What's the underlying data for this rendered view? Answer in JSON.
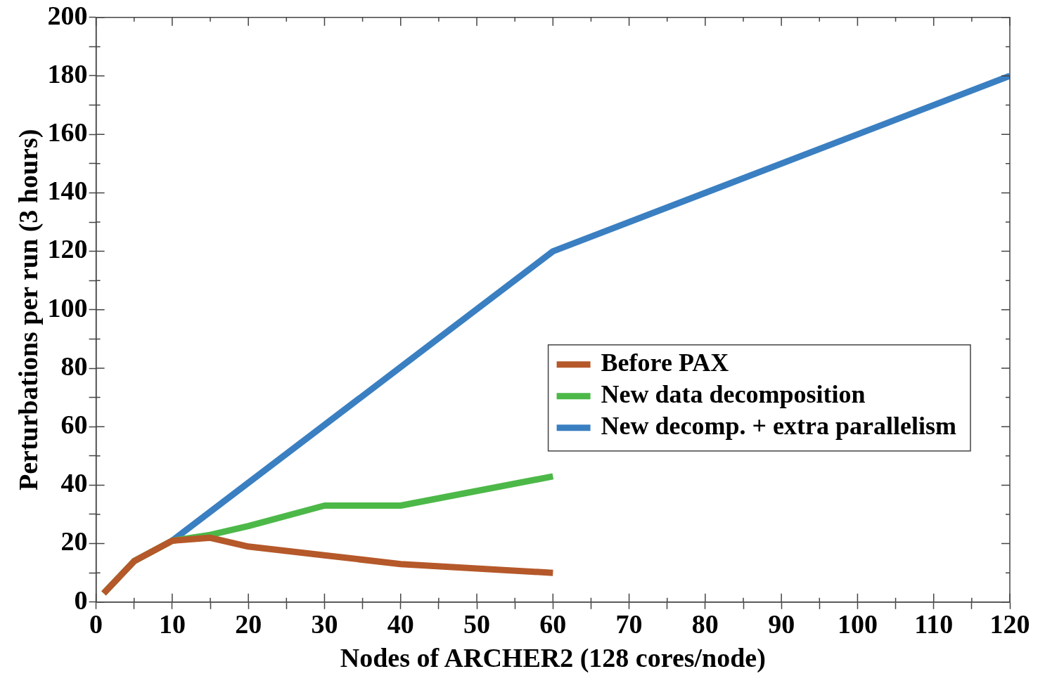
{
  "chart_data": {
    "type": "line",
    "xlabel": "Nodes of ARCHER2 (128 cores/node)",
    "ylabel": "Perturbations per run (3 hours)",
    "xlim": [
      0,
      120
    ],
    "xticks": [
      0,
      {
        "value": 5,
        "label": null
      },
      10,
      {
        "value": 15,
        "label": null
      },
      20,
      {
        "value": 25,
        "label": null
      },
      30,
      {
        "value": 35,
        "label": null
      },
      40,
      {
        "value": 45,
        "label": null
      },
      50,
      {
        "value": 55,
        "label": null
      },
      60,
      {
        "value": 65,
        "label": null
      },
      70,
      {
        "value": 75,
        "label": null
      },
      80,
      {
        "value": 85,
        "label": null
      },
      90,
      {
        "value": 95,
        "label": null
      },
      100,
      {
        "value": 105,
        "label": null
      },
      110,
      {
        "value": 115,
        "label": null
      },
      120
    ],
    "ylim": [
      0,
      200
    ],
    "yticks": [
      0,
      {
        "value": 10,
        "label": null
      },
      20,
      {
        "value": 30,
        "label": null
      },
      40,
      {
        "value": 50,
        "label": null
      },
      60,
      {
        "value": 70,
        "label": null
      },
      80,
      {
        "value": 90,
        "label": null
      },
      100,
      {
        "value": 110,
        "label": null
      },
      120,
      {
        "value": 130,
        "label": null
      },
      140,
      {
        "value": 150,
        "label": null
      },
      160,
      {
        "value": 170,
        "label": null
      },
      180,
      {
        "value": 190,
        "label": null
      },
      200
    ],
    "grid": false,
    "legend": "right",
    "marker": "none",
    "line_style": "solid",
    "series": [
      {
        "name": "Before PAX",
        "color": "#b5582a",
        "x": [
          1,
          5,
          10,
          15,
          20,
          30,
          40,
          60
        ],
        "values": [
          3,
          14,
          21,
          22,
          19,
          16,
          13,
          10
        ]
      },
      {
        "name": "New data decomposition",
        "color": "#4cb848",
        "x": [
          1,
          5,
          10,
          15,
          20,
          30,
          40,
          60
        ],
        "values": [
          3,
          14,
          21,
          23,
          26,
          33,
          33,
          43
        ]
      },
      {
        "name": "New decomp. + extra parallelism",
        "color": "#3a7fc1",
        "x": [
          10,
          60,
          120
        ],
        "values": [
          21,
          120,
          180
        ]
      }
    ]
  }
}
